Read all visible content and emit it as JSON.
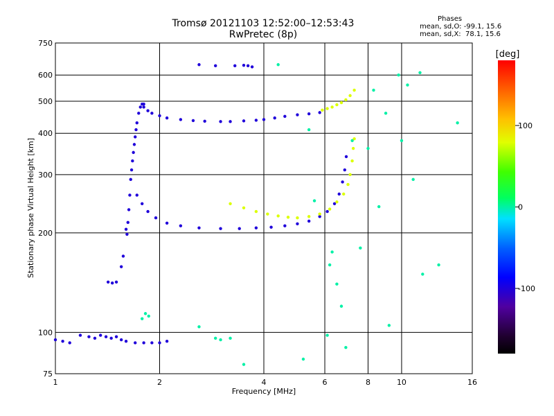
{
  "header": {
    "title": "Tromsø 20121103 12:52:00–12:53:43",
    "subtitle": "RwPretec (8p)"
  },
  "stats": {
    "heading": "Phases",
    "line_o": "mean, sd,O: -99.1, 15.6",
    "line_x": "mean, sd,X:  78.1, 15.6"
  },
  "colorbar": {
    "unit": "[deg]",
    "ticks": [
      "100",
      "0",
      "-100"
    ],
    "tick_values": [
      100,
      0,
      -100
    ],
    "range": [
      -180,
      180
    ]
  },
  "chart_data": {
    "type": "scatter",
    "title": "Tromsø 20121103 12:52:00–12:53:43",
    "subtitle": "RwPretec (8p)",
    "xlabel": "Frequency [MHz]",
    "ylabel": "Stationary phase Virtual Height [km]",
    "xscale": "log",
    "yscale": "log",
    "xlim": [
      1,
      16
    ],
    "ylim": [
      75,
      750
    ],
    "x_ticks": [
      1,
      2,
      4,
      6,
      8,
      10,
      16
    ],
    "y_ticks": [
      75,
      100,
      200,
      300,
      400,
      500,
      600,
      750
    ],
    "x_gridlines": [
      2,
      4,
      6,
      8,
      10
    ],
    "y_gridlines": [
      100,
      200,
      300,
      400,
      500,
      600
    ],
    "color_variable": "phase [deg]",
    "series": [
      {
        "name": "",
        "phase": -100,
        "points": [
          [
            1.0,
            95
          ],
          [
            1.05,
            94
          ],
          [
            1.1,
            93
          ],
          [
            1.18,
            98
          ],
          [
            1.25,
            97
          ],
          [
            1.3,
            96
          ],
          [
            1.35,
            98
          ],
          [
            1.4,
            97
          ],
          [
            1.45,
            96
          ],
          [
            1.5,
            97
          ],
          [
            1.55,
            95
          ],
          [
            1.6,
            94
          ],
          [
            1.7,
            93
          ],
          [
            1.8,
            93
          ],
          [
            1.9,
            93
          ],
          [
            2.0,
            93
          ],
          [
            2.1,
            94
          ]
        ]
      },
      {
        "name": "",
        "phase": -100,
        "points": [
          [
            1.42,
            142
          ],
          [
            1.46,
            141
          ],
          [
            1.5,
            142
          ],
          [
            1.55,
            158
          ],
          [
            1.57,
            170
          ],
          [
            1.6,
            205
          ],
          [
            1.61,
            198
          ],
          [
            1.62,
            215
          ],
          [
            1.63,
            235
          ],
          [
            1.64,
            260
          ],
          [
            1.65,
            290
          ],
          [
            1.66,
            310
          ],
          [
            1.67,
            330
          ],
          [
            1.68,
            350
          ],
          [
            1.69,
            370
          ],
          [
            1.7,
            390
          ],
          [
            1.71,
            410
          ],
          [
            1.72,
            430
          ],
          [
            1.74,
            460
          ],
          [
            1.76,
            480
          ],
          [
            1.78,
            490
          ],
          [
            1.8,
            490
          ]
        ]
      },
      {
        "name": "",
        "phase": -100,
        "points": [
          [
            1.8,
            480
          ],
          [
            1.85,
            468
          ],
          [
            1.9,
            460
          ],
          [
            2.0,
            452
          ],
          [
            2.1,
            445
          ],
          [
            2.3,
            440
          ],
          [
            2.5,
            437
          ],
          [
            2.7,
            435
          ],
          [
            3.0,
            434
          ],
          [
            3.2,
            434
          ],
          [
            3.5,
            436
          ],
          [
            3.8,
            438
          ],
          [
            4.0,
            440
          ],
          [
            4.3,
            445
          ],
          [
            4.6,
            450
          ],
          [
            5.0,
            455
          ],
          [
            5.4,
            458
          ],
          [
            5.8,
            462
          ]
        ]
      },
      {
        "name": "",
        "phase": -100,
        "points": [
          [
            1.72,
            260
          ],
          [
            1.78,
            245
          ],
          [
            1.85,
            232
          ],
          [
            1.95,
            222
          ],
          [
            2.1,
            214
          ],
          [
            2.3,
            210
          ],
          [
            2.6,
            207
          ],
          [
            3.0,
            206
          ],
          [
            3.4,
            206
          ],
          [
            3.8,
            207
          ],
          [
            4.2,
            208
          ],
          [
            4.6,
            210
          ],
          [
            5.0,
            213
          ],
          [
            5.4,
            217
          ],
          [
            5.8,
            224
          ],
          [
            6.1,
            232
          ],
          [
            6.4,
            245
          ],
          [
            6.6,
            262
          ],
          [
            6.75,
            285
          ],
          [
            6.85,
            310
          ],
          [
            6.92,
            340
          ]
        ]
      },
      {
        "name": "",
        "phase": 78,
        "points": [
          [
            3.2,
            245
          ],
          [
            3.5,
            238
          ],
          [
            3.8,
            232
          ],
          [
            4.1,
            228
          ],
          [
            4.4,
            225
          ],
          [
            4.7,
            223
          ],
          [
            5.0,
            222
          ],
          [
            5.4,
            224
          ],
          [
            5.8,
            228
          ],
          [
            6.2,
            236
          ],
          [
            6.5,
            248
          ],
          [
            6.8,
            262
          ],
          [
            7.0,
            280
          ],
          [
            7.1,
            300
          ],
          [
            7.2,
            330
          ],
          [
            7.25,
            360
          ],
          [
            7.3,
            385
          ]
        ]
      },
      {
        "name": "",
        "phase": 78,
        "points": [
          [
            5.9,
            470
          ],
          [
            6.1,
            475
          ],
          [
            6.3,
            480
          ],
          [
            6.5,
            488
          ],
          [
            6.7,
            495
          ],
          [
            6.9,
            505
          ],
          [
            7.1,
            520
          ],
          [
            7.3,
            540
          ]
        ]
      },
      {
        "name": "",
        "phase": -100,
        "points": [
          [
            2.6,
            645
          ],
          [
            2.9,
            640
          ],
          [
            3.3,
            640
          ],
          [
            3.5,
            642
          ],
          [
            3.6,
            640
          ],
          [
            3.7,
            635
          ]
        ]
      },
      {
        "name": "",
        "phase": 0,
        "points": [
          [
            1.78,
            110
          ],
          [
            1.82,
            114
          ],
          [
            1.86,
            112
          ],
          [
            2.6,
            104
          ],
          [
            2.9,
            96
          ],
          [
            3.0,
            95
          ],
          [
            3.2,
            96
          ],
          [
            3.5,
            80
          ],
          [
            4.4,
            645
          ],
          [
            5.2,
            83
          ],
          [
            5.4,
            410
          ],
          [
            5.6,
            250
          ],
          [
            6.1,
            98
          ],
          [
            6.2,
            160
          ],
          [
            6.3,
            175
          ],
          [
            6.5,
            140
          ],
          [
            6.7,
            120
          ],
          [
            6.9,
            90
          ],
          [
            7.2,
            380
          ],
          [
            7.6,
            180
          ],
          [
            8.0,
            360
          ],
          [
            8.3,
            540
          ],
          [
            8.6,
            240
          ],
          [
            9.0,
            460
          ],
          [
            9.2,
            105
          ],
          [
            9.8,
            600
          ],
          [
            10.0,
            380
          ],
          [
            10.4,
            560
          ],
          [
            10.8,
            290
          ],
          [
            11.3,
            610
          ],
          [
            11.5,
            150
          ],
          [
            12.8,
            160
          ],
          [
            14.5,
            430
          ]
        ]
      }
    ]
  }
}
